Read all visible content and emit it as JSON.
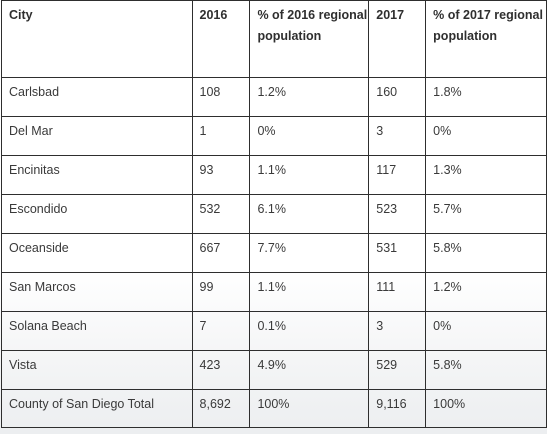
{
  "table": {
    "headers": {
      "city": "City",
      "year_2016": "2016",
      "pct_2016": "% of 2016 regional population",
      "year_2017": "2017",
      "pct_2017": "% of 2017 regional population"
    },
    "rows": [
      {
        "city": "Carlsbad",
        "y2016": "108",
        "p2016": "1.2%",
        "y2017": "160",
        "p2017": "1.8%"
      },
      {
        "city": "Del Mar",
        "y2016": "1",
        "p2016": "0%",
        "y2017": "3",
        "p2017": "0%"
      },
      {
        "city": "Encinitas",
        "y2016": "93",
        "p2016": "1.1%",
        "y2017": "117",
        "p2017": "1.3%"
      },
      {
        "city": "Escondido",
        "y2016": "532",
        "p2016": "6.1%",
        "y2017": "523",
        "p2017": "5.7%"
      },
      {
        "city": "Oceanside",
        "y2016": "667",
        "p2016": "7.7%",
        "y2017": "531",
        "p2017": "5.8%"
      },
      {
        "city": "San Marcos",
        "y2016": "99",
        "p2016": "1.1%",
        "y2017": "111",
        "p2017": "1.2%"
      },
      {
        "city": "Solana Beach",
        "y2016": "7",
        "p2016": "0.1%",
        "y2017": "3",
        "p2017": "0%"
      },
      {
        "city": "Vista",
        "y2016": "423",
        "p2016": "4.9%",
        "y2017": "529",
        "p2017": "5.8%"
      },
      {
        "city": "County of San Diego Total",
        "y2016": "8,692",
        "p2016": "100%",
        "y2017": "9,116",
        "p2017": "100%"
      }
    ]
  }
}
